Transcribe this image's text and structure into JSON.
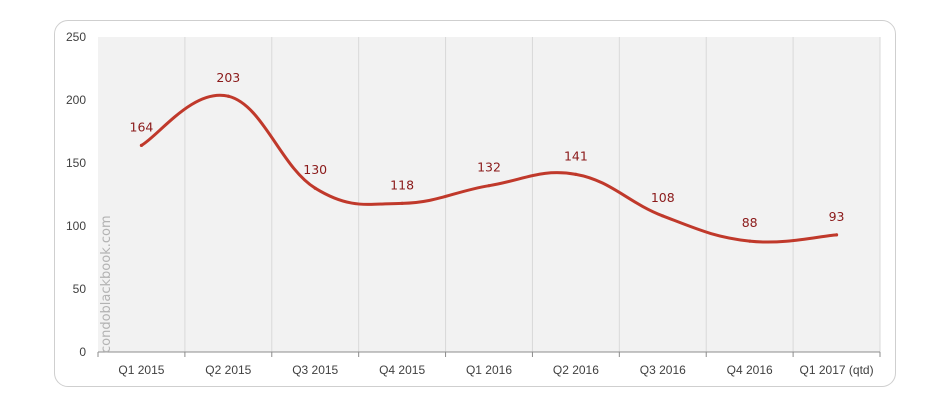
{
  "chart_data": {
    "type": "line",
    "categories": [
      "Q1 2015",
      "Q2 2015",
      "Q3 2015",
      "Q4 2015",
      "Q1 2016",
      "Q2 2016",
      "Q3 2016",
      "Q4 2016",
      "Q1 2017 (qtd)"
    ],
    "series": [
      {
        "values": [
          164,
          203,
          130,
          118,
          132,
          141,
          108,
          88,
          93
        ]
      }
    ],
    "ylim": [
      0,
      250
    ],
    "yticks": [
      0,
      50,
      100,
      150,
      200,
      250
    ],
    "grid": "vertical",
    "data_labels": true,
    "line_color": "#c0392b",
    "label_color": "#8b1a1a",
    "plot_background": "#f2f2f2"
  },
  "watermark": "condoblackbook.com"
}
